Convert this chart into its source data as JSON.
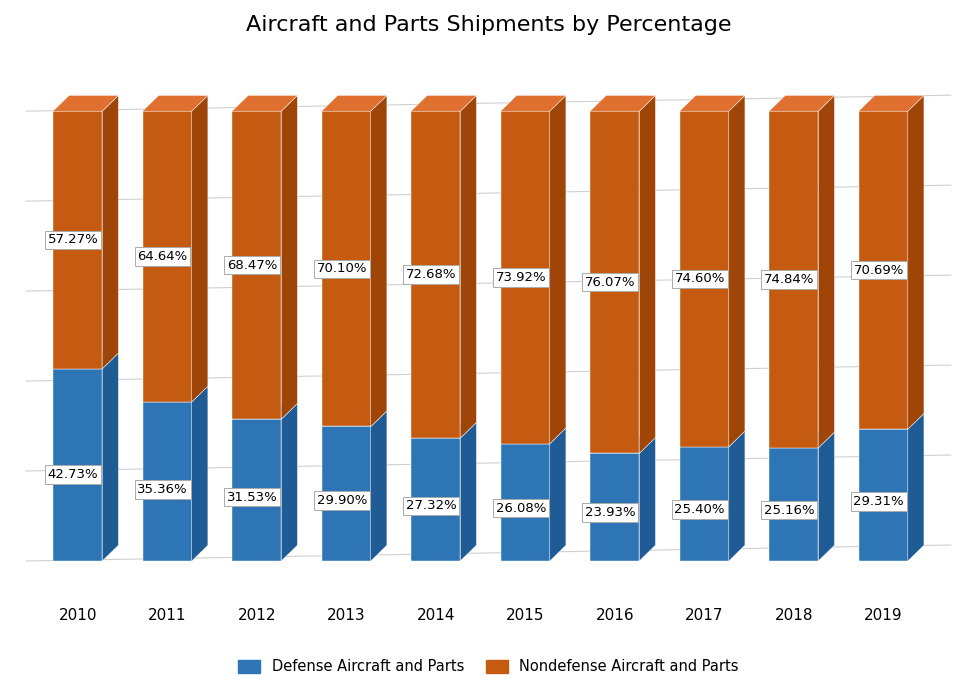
{
  "title": "Aircraft and Parts Shipments by Percentage",
  "years": [
    "2010",
    "2011",
    "2012",
    "2013",
    "2014",
    "2015",
    "2016",
    "2017",
    "2018",
    "2019"
  ],
  "defense": [
    42.73,
    35.36,
    31.53,
    29.9,
    27.32,
    26.08,
    23.93,
    25.4,
    25.16,
    29.31
  ],
  "nondefense": [
    57.27,
    64.64,
    68.47,
    70.1,
    72.68,
    73.92,
    76.07,
    74.6,
    74.84,
    70.69
  ],
  "defense_color": "#2E75B6",
  "defense_shadow_color": "#1F5C96",
  "defense_top_color": "#4A8FCC",
  "nondefense_color": "#C55A11",
  "nondefense_shadow_color": "#A04508",
  "nondefense_top_color": "#E07030",
  "background_color": "#FFFFFF",
  "grid_color": "#D0D0D0",
  "title_fontsize": 16,
  "label_fontsize": 9.5,
  "tick_fontsize": 11,
  "legend_fontsize": 10.5,
  "bar_width": 0.55,
  "depth": 0.12,
  "ylim_min": -8,
  "ylim_max": 108,
  "ytick_values": [
    0,
    20,
    40,
    60,
    80,
    100
  ],
  "n_gridlines": 6,
  "defense_label_yoffset": 0.45,
  "nondefense_label_yoffset": 0.5
}
